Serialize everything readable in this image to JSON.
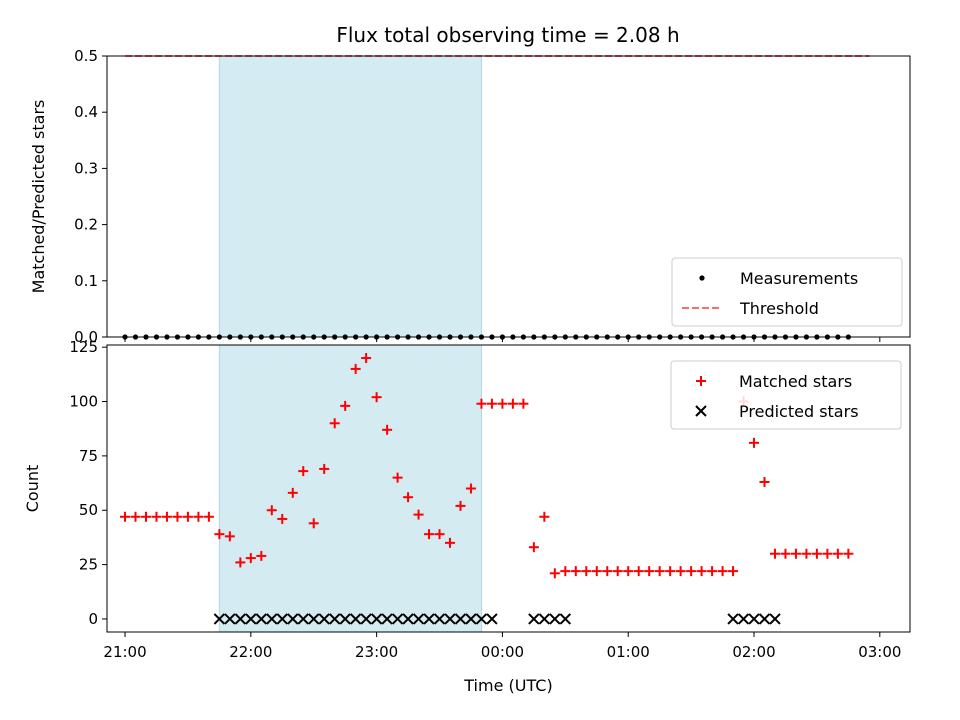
{
  "colors": {
    "shade": "#add8e6",
    "threshold": "#ff6b6b",
    "matched": "#ff0000",
    "predicted": "#000000",
    "measurement": "#000000"
  },
  "chart_data": [
    {
      "type": "scatter",
      "title": "Flux total observing time = 2.08 h",
      "ylabel": "Matched/Predicted stars",
      "xlabel": "",
      "x_axis": "time",
      "ylim": [
        0,
        0.5
      ],
      "yticks": [
        "0.0",
        "0.1",
        "0.2",
        "0.3",
        "0.4",
        "0.5"
      ],
      "shaded_span": {
        "from": "21:45",
        "to": "23:50"
      },
      "series": [
        {
          "name": "Measurements",
          "marker": "dot",
          "x": [
            "21:00",
            "21:05",
            "21:10",
            "21:15",
            "21:20",
            "21:25",
            "21:30",
            "21:35",
            "21:40",
            "21:45",
            "21:50",
            "21:55",
            "22:00",
            "22:05",
            "22:10",
            "22:15",
            "22:20",
            "22:25",
            "22:30",
            "22:35",
            "22:40",
            "22:45",
            "22:50",
            "22:55",
            "23:00",
            "23:05",
            "23:10",
            "23:15",
            "23:20",
            "23:25",
            "23:30",
            "23:35",
            "23:40",
            "23:45",
            "23:50",
            "23:55",
            "00:00",
            "00:05",
            "00:10",
            "00:15",
            "00:20",
            "00:25",
            "00:30",
            "00:35",
            "00:40",
            "00:45",
            "00:50",
            "00:55",
            "01:00",
            "01:05",
            "01:10",
            "01:15",
            "01:20",
            "01:25",
            "01:30",
            "01:35",
            "01:40",
            "01:45",
            "01:50",
            "01:55",
            "02:00",
            "02:05",
            "02:10",
            "02:15",
            "02:20",
            "02:25",
            "02:30",
            "02:35",
            "02:40",
            "02:45"
          ],
          "y": [
            0,
            0,
            0,
            0,
            0,
            0,
            0,
            0,
            0,
            0,
            0,
            0,
            0,
            0,
            0,
            0,
            0,
            0,
            0,
            0,
            0,
            0,
            0,
            0,
            0,
            0,
            0,
            0,
            0,
            0,
            0,
            0,
            0,
            0,
            0,
            0,
            0,
            0,
            0,
            0,
            0,
            0,
            0,
            0,
            0,
            0,
            0,
            0,
            0,
            0,
            0,
            0,
            0,
            0,
            0,
            0,
            0,
            0,
            0,
            0,
            0,
            0,
            0,
            0,
            0,
            0,
            0,
            0,
            0,
            0
          ]
        },
        {
          "name": "Threshold",
          "marker": "dashed-line",
          "x": [
            "21:00",
            "02:55"
          ],
          "y": [
            0.5,
            0.5
          ]
        }
      ],
      "legend": "lower right"
    },
    {
      "type": "scatter",
      "title": "",
      "ylabel": "Count",
      "xlabel": "Time (UTC)",
      "x_axis": "time",
      "ylim": [
        -6,
        126
      ],
      "yticks": [
        "0",
        "25",
        "50",
        "75",
        "100",
        "125"
      ],
      "xticks": [
        "21:00",
        "22:00",
        "23:00",
        "00:00",
        "01:00",
        "02:00",
        "03:00"
      ],
      "shaded_span": {
        "from": "21:45",
        "to": "23:50"
      },
      "series": [
        {
          "name": "Matched stars",
          "marker": "plus",
          "x": [
            "21:00",
            "21:05",
            "21:10",
            "21:15",
            "21:20",
            "21:25",
            "21:30",
            "21:35",
            "21:40",
            "21:45",
            "21:50",
            "21:55",
            "22:00",
            "22:05",
            "22:10",
            "22:15",
            "22:20",
            "22:25",
            "22:30",
            "22:35",
            "22:40",
            "22:45",
            "22:50",
            "22:55",
            "23:00",
            "23:05",
            "23:10",
            "23:15",
            "23:20",
            "23:25",
            "23:30",
            "23:35",
            "23:40",
            "23:45",
            "23:50",
            "23:55",
            "00:00",
            "00:05",
            "00:10",
            "00:15",
            "00:20",
            "00:25",
            "00:30",
            "00:35",
            "00:40",
            "00:45",
            "00:50",
            "00:55",
            "01:00",
            "01:05",
            "01:10",
            "01:15",
            "01:20",
            "01:25",
            "01:30",
            "01:35",
            "01:40",
            "01:45",
            "01:50",
            "01:55",
            "02:00",
            "02:05",
            "02:10",
            "02:15",
            "02:20",
            "02:25",
            "02:30",
            "02:35",
            "02:40",
            "02:45"
          ],
          "y": [
            47,
            47,
            47,
            47,
            47,
            47,
            47,
            47,
            47,
            39,
            38,
            26,
            28,
            29,
            50,
            46,
            58,
            68,
            44,
            69,
            90,
            98,
            115,
            120,
            102,
            87,
            65,
            56,
            48,
            39,
            39,
            35,
            52,
            60,
            99,
            99,
            99,
            99,
            99,
            33,
            47,
            21,
            22,
            22,
            22,
            22,
            22,
            22,
            22,
            22,
            22,
            22,
            22,
            22,
            22,
            22,
            22,
            22,
            22,
            100,
            81,
            63,
            30,
            30,
            30,
            30,
            30,
            30,
            30,
            30
          ]
        },
        {
          "name": "Predicted stars",
          "marker": "x",
          "x": [
            "21:45",
            "21:50",
            "21:55",
            "22:00",
            "22:05",
            "22:10",
            "22:15",
            "22:20",
            "22:25",
            "22:30",
            "22:35",
            "22:40",
            "22:45",
            "22:50",
            "22:55",
            "23:00",
            "23:05",
            "23:10",
            "23:15",
            "23:20",
            "23:25",
            "23:30",
            "23:35",
            "23:40",
            "23:45",
            "23:50",
            "23:55",
            "00:15",
            "00:20",
            "00:25",
            "00:30",
            "01:50",
            "01:55",
            "02:00",
            "02:05",
            "02:10"
          ],
          "y": [
            0,
            0,
            0,
            0,
            0,
            0,
            0,
            0,
            0,
            0,
            0,
            0,
            0,
            0,
            0,
            0,
            0,
            0,
            0,
            0,
            0,
            0,
            0,
            0,
            0,
            0,
            0,
            0,
            0,
            0,
            0,
            0,
            0,
            0,
            0,
            0
          ]
        }
      ],
      "legend": "upper right"
    }
  ]
}
